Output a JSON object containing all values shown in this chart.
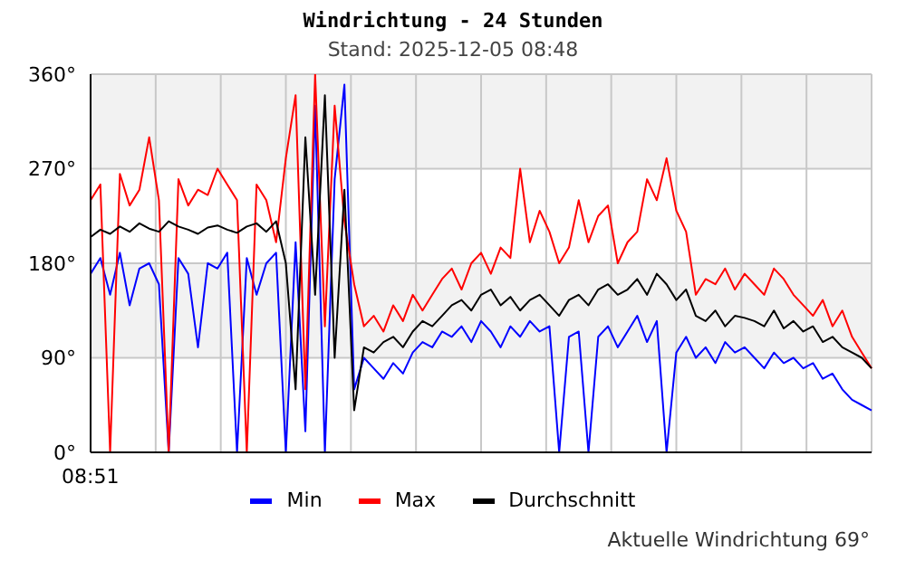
{
  "chart_data": {
    "type": "line",
    "title": "Windrichtung - 24 Stunden",
    "subtitle": "Stand: 2025-12-05 08:48",
    "categories": [
      null,
      null,
      null,
      null,
      null,
      null,
      null,
      null,
      null,
      null,
      null,
      null,
      null,
      null,
      null,
      null,
      null,
      null,
      null,
      null,
      null,
      null,
      null,
      null,
      null,
      null,
      null,
      null,
      null,
      null,
      null,
      null,
      null,
      null,
      null,
      null,
      null,
      null,
      null,
      null,
      null,
      null,
      null,
      null,
      null,
      null,
      null,
      null,
      null,
      null,
      null,
      null,
      null,
      null,
      null,
      null,
      null,
      null,
      null,
      null,
      null,
      null,
      null,
      null,
      null,
      null,
      null,
      null,
      null,
      null,
      null,
      null,
      null,
      null,
      null,
      null,
      null,
      null,
      null,
      null,
      null
    ],
    "series": [
      {
        "name": "Min",
        "color": "#0000ff",
        "values": [
          170,
          185,
          150,
          190,
          140,
          175,
          180,
          160,
          0,
          185,
          170,
          100,
          180,
          175,
          190,
          0,
          185,
          150,
          180,
          190,
          0,
          200,
          20,
          330,
          0,
          260,
          350,
          60,
          90,
          80,
          70,
          85,
          75,
          95,
          105,
          100,
          115,
          110,
          120,
          105,
          125,
          115,
          100,
          120,
          110,
          125,
          115,
          120,
          0,
          110,
          115,
          0,
          110,
          120,
          100,
          115,
          130,
          105,
          125,
          0,
          95,
          110,
          90,
          100,
          85,
          105,
          95,
          100,
          90,
          80,
          95,
          85,
          90,
          80,
          85,
          70,
          75,
          60,
          50,
          45,
          40
        ]
      },
      {
        "name": "Max",
        "color": "#ff0000",
        "values": [
          240,
          255,
          0,
          265,
          235,
          250,
          300,
          240,
          0,
          260,
          235,
          250,
          245,
          270,
          255,
          240,
          0,
          255,
          240,
          200,
          280,
          340,
          60,
          360,
          120,
          330,
          220,
          160,
          120,
          130,
          115,
          140,
          125,
          150,
          135,
          150,
          165,
          175,
          155,
          180,
          190,
          170,
          195,
          185,
          270,
          200,
          230,
          210,
          180,
          195,
          240,
          200,
          225,
          235,
          180,
          200,
          210,
          260,
          240,
          280,
          230,
          210,
          150,
          165,
          160,
          175,
          155,
          170,
          160,
          150,
          175,
          165,
          150,
          140,
          130,
          145,
          120,
          135,
          110,
          95,
          80
        ]
      },
      {
        "name": "Durchschnitt",
        "color": "#000000",
        "values": [
          205,
          212,
          208,
          215,
          210,
          218,
          213,
          210,
          220,
          215,
          212,
          208,
          214,
          216,
          212,
          209,
          215,
          218,
          210,
          220,
          180,
          60,
          300,
          150,
          340,
          90,
          250,
          40,
          100,
          95,
          105,
          110,
          100,
          115,
          125,
          120,
          130,
          140,
          145,
          135,
          150,
          155,
          140,
          148,
          135,
          145,
          150,
          140,
          130,
          145,
          150,
          140,
          155,
          160,
          150,
          155,
          165,
          150,
          170,
          160,
          145,
          155,
          130,
          125,
          135,
          120,
          130,
          128,
          125,
          120,
          135,
          118,
          125,
          115,
          120,
          105,
          110,
          100,
          95,
          90,
          80
        ]
      }
    ],
    "ylim": [
      0,
      360
    ],
    "yticks": [
      {
        "value": 0,
        "label": "0°"
      },
      {
        "value": 90,
        "label": "90°"
      },
      {
        "value": 180,
        "label": "180°"
      },
      {
        "value": 270,
        "label": "270°"
      },
      {
        "value": 360,
        "label": "360°"
      }
    ],
    "grid": true,
    "legend": "bottom",
    "marker": "none",
    "line_style": "solid",
    "annotations": [
      "08:51",
      "Aktuelle Windrichtung 69°"
    ]
  }
}
